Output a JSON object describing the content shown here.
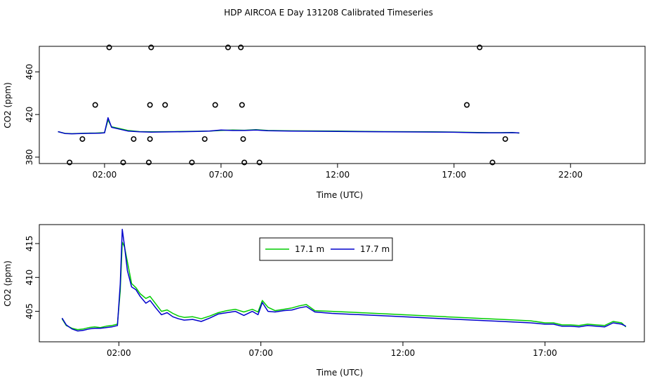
{
  "title": "HDP AIRCOA E  Day 131208  Calibrated Timeseries",
  "chart_data": [
    {
      "type": "line",
      "panel": "top",
      "xlabel": "Time (UTC)",
      "ylabel": "CO2 (ppm)",
      "xlim": [
        -0.8,
        25.2
      ],
      "ylim": [
        374,
        484
      ],
      "x_ticks": [
        2,
        7,
        12,
        17,
        22
      ],
      "x_tick_labels": [
        "02:00",
        "07:00",
        "12:00",
        "17:00",
        "22:00"
      ],
      "y_ticks": [
        380,
        420,
        460
      ],
      "y_tick_labels": [
        "380",
        "420",
        "460"
      ],
      "series": [
        {
          "color": "#00cc00",
          "x": [
            0.0,
            0.3,
            0.6,
            1.0,
            1.3,
            1.6,
            1.8,
            2.0,
            2.15,
            2.3,
            2.6,
            3.0,
            3.5,
            4.0,
            5.0,
            6.0,
            6.5,
            7.0,
            7.5,
            8.0,
            8.5,
            9.0,
            10.0,
            12.0,
            14.0,
            16.0,
            17.0,
            18.0,
            18.5,
            19.0,
            19.5,
            19.8
          ],
          "y": [
            403.9,
            402.3,
            402.0,
            402.3,
            402.5,
            402.6,
            402.8,
            403.0,
            415.0,
            408.5,
            407.0,
            405.0,
            404.0,
            403.8,
            404.0,
            404.3,
            404.5,
            405.0,
            405.4,
            405.2,
            405.8,
            405.0,
            404.7,
            404.4,
            404.0,
            403.8,
            403.6,
            403.2,
            403.0,
            403.0,
            403.1,
            402.6
          ]
        },
        {
          "color": "#0000cc",
          "x": [
            0.0,
            0.3,
            0.6,
            1.0,
            1.3,
            1.6,
            1.8,
            2.0,
            2.15,
            2.3,
            2.6,
            3.0,
            3.5,
            4.0,
            5.0,
            6.0,
            6.5,
            7.0,
            7.5,
            8.0,
            8.5,
            9.0,
            10.0,
            12.0,
            14.0,
            16.0,
            17.0,
            18.0,
            18.5,
            19.0,
            19.5,
            19.8
          ],
          "y": [
            404.0,
            402.2,
            401.9,
            402.1,
            402.3,
            402.4,
            402.5,
            402.8,
            417.0,
            408.0,
            406.5,
            404.5,
            403.8,
            403.5,
            403.8,
            404.2,
            404.5,
            405.5,
            405.0,
            405.0,
            405.5,
            404.8,
            404.5,
            404.2,
            403.8,
            403.6,
            403.4,
            402.9,
            402.8,
            402.8,
            403.0,
            402.7
          ]
        }
      ],
      "calibration_points": {
        "x": [
          0.5,
          1.05,
          1.6,
          2.2,
          2.8,
          3.25,
          3.9,
          3.95,
          3.95,
          4.0,
          4.6,
          5.75,
          6.3,
          6.75,
          7.3,
          7.85,
          7.9,
          7.95,
          8.0,
          8.65,
          17.55,
          18.1,
          18.65,
          19.2
        ],
        "y": [
          375,
          397,
          429,
          483,
          375,
          397,
          375,
          397,
          429,
          483,
          429,
          375,
          397,
          429,
          483,
          483,
          429,
          397,
          375,
          375,
          429,
          483,
          375,
          397
        ]
      }
    },
    {
      "type": "line",
      "panel": "bottom",
      "xlabel": "Time (UTC)",
      "ylabel": "CO2 (ppm)",
      "xlim": [
        -0.8,
        20.5
      ],
      "ylim": [
        400.5,
        417.8
      ],
      "x_ticks": [
        2,
        7,
        12,
        17
      ],
      "x_tick_labels": [
        "02:00",
        "07:00",
        "12:00",
        "17:00"
      ],
      "y_ticks": [
        405,
        410,
        415
      ],
      "y_tick_labels": [
        "405",
        "410",
        "415"
      ],
      "legend": {
        "placement": "top-center",
        "entries": [
          "17.1 m",
          "17.7 m"
        ],
        "colors": [
          "#00cc00",
          "#0000cc"
        ]
      },
      "series": [
        {
          "name": "17.1 m",
          "color": "#00cc00",
          "x": [
            0.0,
            0.15,
            0.35,
            0.55,
            0.75,
            0.95,
            1.15,
            1.35,
            1.55,
            1.75,
            1.95,
            2.05,
            2.12,
            2.2,
            2.3,
            2.45,
            2.6,
            2.75,
            2.95,
            3.1,
            3.3,
            3.5,
            3.7,
            3.9,
            4.1,
            4.3,
            4.6,
            4.9,
            5.2,
            5.5,
            5.8,
            6.1,
            6.4,
            6.7,
            6.9,
            7.05,
            7.25,
            7.5,
            7.8,
            8.1,
            8.35,
            8.6,
            8.9,
            9.5,
            10.5,
            11.5,
            12.5,
            13.5,
            14.5,
            15.5,
            16.5,
            17.0,
            17.3,
            17.6,
            17.9,
            18.2,
            18.5,
            18.8,
            19.1,
            19.4,
            19.7,
            19.85
          ],
          "y": [
            403.9,
            402.9,
            402.5,
            402.3,
            402.4,
            402.6,
            402.7,
            402.6,
            402.8,
            402.9,
            403.1,
            408.0,
            415.2,
            414.5,
            412.3,
            409.1,
            408.5,
            407.6,
            406.9,
            407.2,
            406.1,
            405.0,
            405.2,
            404.7,
            404.3,
            404.1,
            404.2,
            403.9,
            404.3,
            404.8,
            405.1,
            405.3,
            404.9,
            405.3,
            404.9,
            406.6,
            405.6,
            405.1,
            405.3,
            405.5,
            405.8,
            406.0,
            405.1,
            405.0,
            404.8,
            404.6,
            404.4,
            404.2,
            404.0,
            403.8,
            403.6,
            403.3,
            403.3,
            403.0,
            403.0,
            402.9,
            403.1,
            403.0,
            402.9,
            403.5,
            403.3,
            402.7
          ]
        },
        {
          "name": "17.7 m",
          "color": "#0000cc",
          "x": [
            0.0,
            0.15,
            0.35,
            0.55,
            0.75,
            0.95,
            1.15,
            1.35,
            1.55,
            1.75,
            1.95,
            2.05,
            2.12,
            2.2,
            2.3,
            2.45,
            2.6,
            2.75,
            2.95,
            3.1,
            3.3,
            3.5,
            3.7,
            3.9,
            4.1,
            4.3,
            4.6,
            4.9,
            5.2,
            5.5,
            5.8,
            6.1,
            6.4,
            6.7,
            6.9,
            7.05,
            7.25,
            7.5,
            7.8,
            8.1,
            8.35,
            8.6,
            8.9,
            9.5,
            10.5,
            11.5,
            12.5,
            13.5,
            14.5,
            15.5,
            16.5,
            17.0,
            17.3,
            17.6,
            17.9,
            18.2,
            18.5,
            18.8,
            19.1,
            19.4,
            19.7,
            19.85
          ],
          "y": [
            404.0,
            403.0,
            402.4,
            402.1,
            402.2,
            402.4,
            402.5,
            402.5,
            402.6,
            402.7,
            402.9,
            409.0,
            417.1,
            414.6,
            411.0,
            408.6,
            408.2,
            407.2,
            406.2,
            406.6,
            405.5,
            404.5,
            404.8,
            404.2,
            403.9,
            403.7,
            403.8,
            403.5,
            404.0,
            404.6,
            404.8,
            405.0,
            404.4,
            405.0,
            404.5,
            406.3,
            405.0,
            404.9,
            405.1,
            405.2,
            405.5,
            405.7,
            404.9,
            404.7,
            404.5,
            404.3,
            404.1,
            403.9,
            403.7,
            403.5,
            403.3,
            403.1,
            403.1,
            402.8,
            402.8,
            402.7,
            402.9,
            402.8,
            402.7,
            403.3,
            403.1,
            402.8
          ]
        }
      ]
    }
  ]
}
